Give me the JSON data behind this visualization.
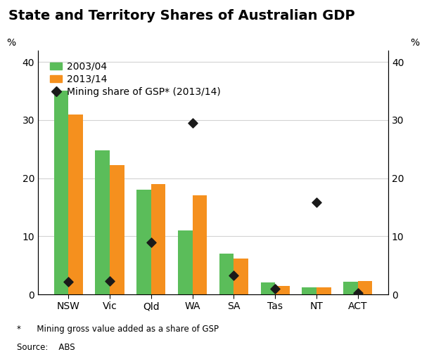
{
  "title": "State and Territory Shares of Australian GDP",
  "categories": [
    "NSW",
    "Vic",
    "Qld",
    "WA",
    "SA",
    "Tas",
    "NT",
    "ACT"
  ],
  "values_2003": [
    35.0,
    24.8,
    18.0,
    11.0,
    7.0,
    2.0,
    1.2,
    2.2
  ],
  "values_2013": [
    31.0,
    22.2,
    19.0,
    17.0,
    6.2,
    1.5,
    1.2,
    2.3
  ],
  "mining_share": [
    2.2,
    2.3,
    9.0,
    29.5,
    3.3,
    1.0,
    15.8,
    0.2
  ],
  "color_2003": "#5BBD5A",
  "color_2013": "#F5901E",
  "color_mining": "#1a1a1a",
  "ylabel_left": "%",
  "ylabel_right": "%",
  "ylim": [
    0,
    42
  ],
  "yticks": [
    0,
    10,
    20,
    30,
    40
  ],
  "legend_2003": "2003/04",
  "legend_2013": "2013/14",
  "legend_mining": "Mining share of GSP* (2013/14)",
  "footnote1": "*      Mining gross value added as a share of GSP",
  "footnote2": "Source:    ABS",
  "title_fontsize": 14,
  "tick_fontsize": 10,
  "legend_fontsize": 10
}
